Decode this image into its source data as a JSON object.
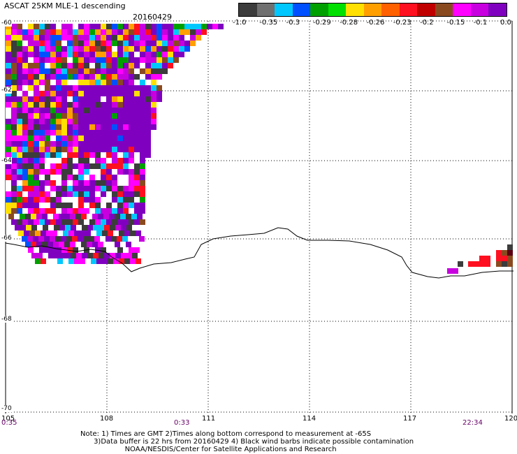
{
  "header": {
    "title": "ASCAT 25KM MLE-1 descending",
    "date": "20160429"
  },
  "colorbar": {
    "labels": [
      "-1.0",
      "-0.35",
      "-0.3",
      "-0.29",
      "-0.28",
      "-0.26",
      "-0.23",
      "-0.2",
      "-0.15",
      "-0.1",
      "0.0"
    ],
    "colors": [
      "#3c3c3c",
      "#707070",
      "#00c8ff",
      "#0050ff",
      "#00a000",
      "#00e000",
      "#ffe000",
      "#ffa000",
      "#ff6000",
      "#ff1020",
      "#c00000",
      "#8a4a20",
      "#ff00ff",
      "#c800e0",
      "#8000c0"
    ]
  },
  "axes": {
    "lat_labels": [
      "-60",
      "-62",
      "-64",
      "-66",
      "-68",
      "-70"
    ],
    "lon_labels": [
      "105",
      "108",
      "111",
      "114",
      "117",
      "120"
    ],
    "time_labels": [
      "0:35",
      "0:33",
      "22:34"
    ]
  },
  "notes": [
    "Note: 1) Times are GMT 2)Times along bottom correspond to measurement at -65S",
    "      3)Data buffer is 22 hrs from 20160429 4) Black wind barbs indicate possible contamination",
    "                    NOAA/NESDIS/Center for Satellite Applications and Research"
  ]
}
